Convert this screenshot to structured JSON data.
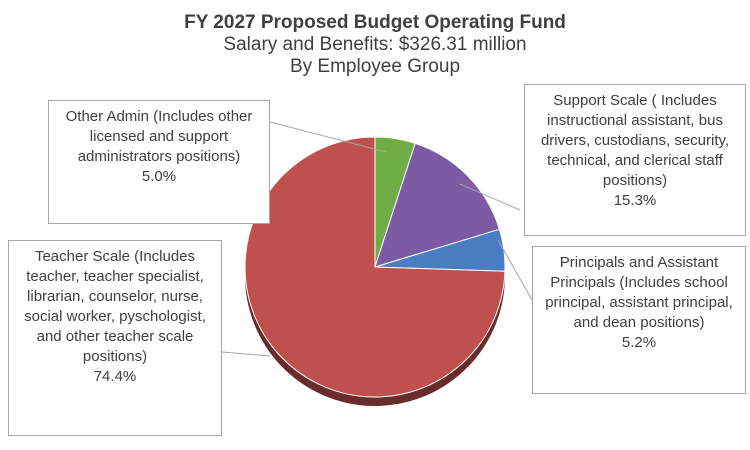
{
  "title": {
    "line1": "FY 2027 Proposed Budget Operating Fund",
    "line2": "Salary and Benefits: $326.31 million",
    "line3": "By Employee Group"
  },
  "chart_data": {
    "type": "pie",
    "title": "FY 2027 Proposed Budget Operating Fund",
    "subtitle": "Salary and Benefits: $326.31 million / By Employee Group",
    "slices": [
      {
        "label": "Other Admin (Includes other licensed and support administrators positions)",
        "value": 5.0,
        "pct_label": "5.0%",
        "color": "#6fac46"
      },
      {
        "label": "Support Scale ( Includes instructional assistant, bus drivers, custodians, security, technical, and clerical staff positions)",
        "value": 15.3,
        "pct_label": "15.3%",
        "color": "#7d5aa4"
      },
      {
        "label": "Principals and Assistant Principals (Includes school principal, assistant principal, and dean positions)",
        "value": 5.2,
        "pct_label": "5.2%",
        "color": "#4a7ec2"
      },
      {
        "label": "Teacher Scale (Includes teacher, teacher specialist, librarian, counselor, nurse, social worker, pyschologist, and other teacher scale positions)",
        "value": 74.4,
        "pct_label": "74.4%",
        "color": "#c0504d"
      }
    ]
  }
}
